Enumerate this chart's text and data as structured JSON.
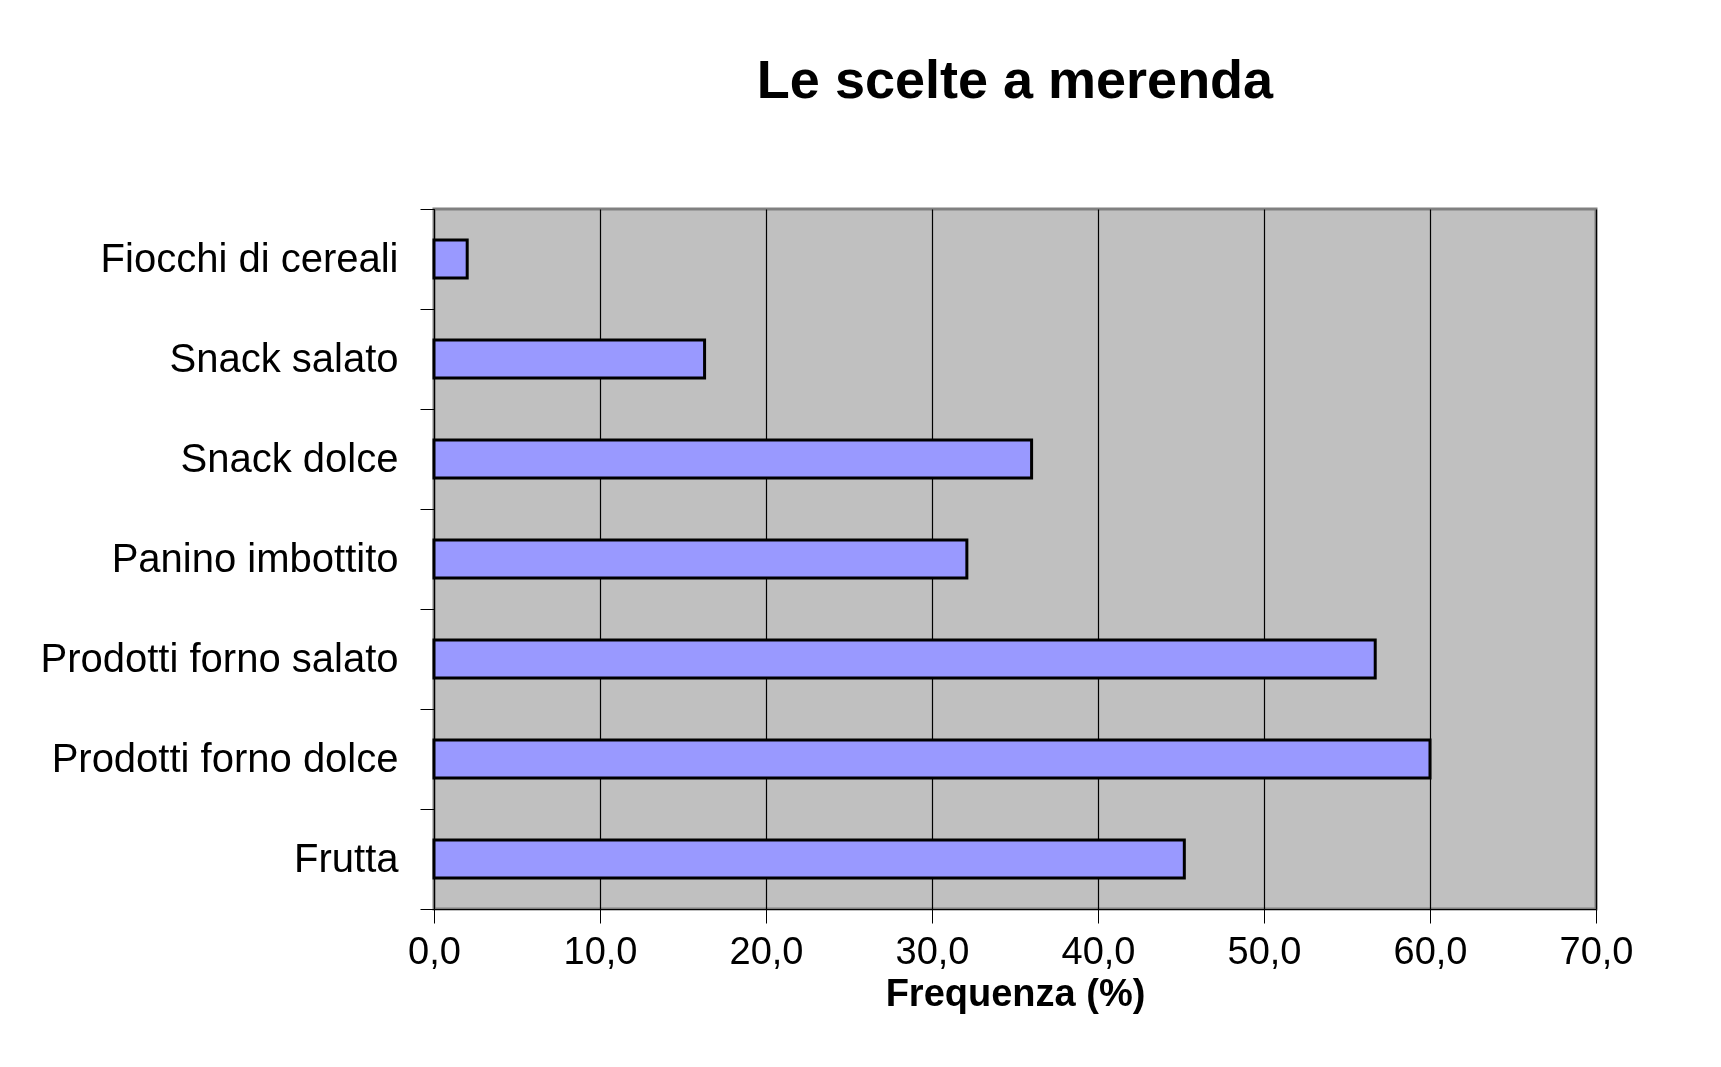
{
  "chart_data": {
    "type": "bar",
    "orientation": "horizontal",
    "title": "Le scelte a merenda",
    "xlabel": "Frequenza (%)",
    "categories": [
      "Fiocchi di cereali",
      "Snack salato",
      "Snack dolce",
      "Panino imbottito",
      "Prodotti forno salato",
      "Prodotti forno dolce",
      "Frutta"
    ],
    "values": [
      2.0,
      16.3,
      36.0,
      32.1,
      56.7,
      60.0,
      45.2
    ],
    "color": "#9999ff",
    "xlim": [
      0,
      70
    ],
    "xticks": [
      {
        "value": 0,
        "label": "0,0"
      },
      {
        "value": 10,
        "label": "10,0"
      },
      {
        "value": 20,
        "label": "20,0"
      },
      {
        "value": 30,
        "label": "30,0"
      },
      {
        "value": 40,
        "label": "40,0"
      },
      {
        "value": 50,
        "label": "50,0"
      },
      {
        "value": 60,
        "label": "60,0"
      },
      {
        "value": 70,
        "label": "70,0"
      }
    ],
    "grid": "x"
  }
}
